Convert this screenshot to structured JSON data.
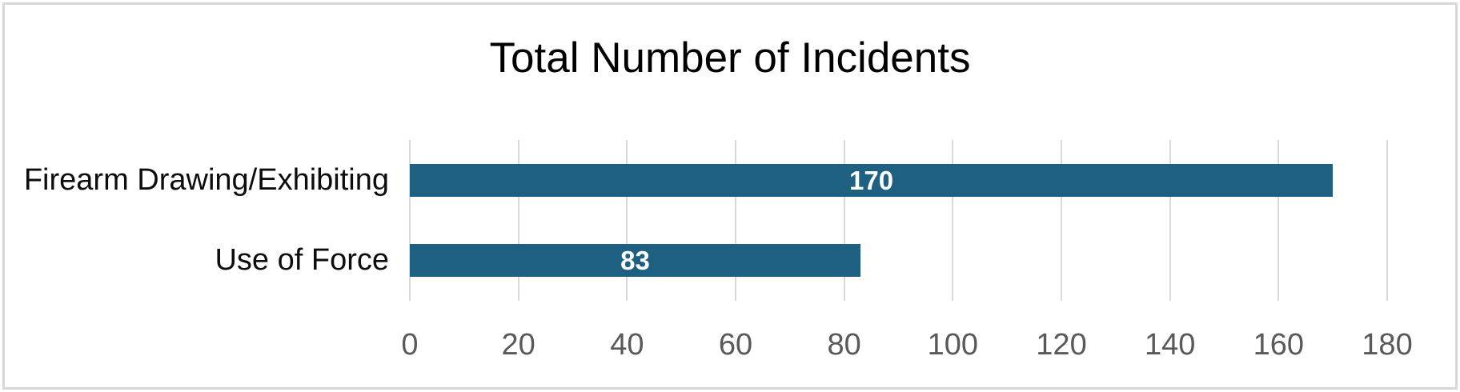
{
  "chart_data": {
    "type": "bar",
    "orientation": "horizontal",
    "title": "Total Number of Incidents",
    "categories": [
      "Firearm Drawing/Exhibiting",
      "Use of Force"
    ],
    "values": [
      170,
      83
    ],
    "value_labels": [
      "170",
      "83"
    ],
    "xlabel": "",
    "ylabel": "",
    "xlim": [
      0,
      180
    ],
    "x_ticks": [
      0,
      20,
      40,
      60,
      80,
      100,
      120,
      140,
      160,
      180
    ],
    "grid": true,
    "legend": false,
    "colors": {
      "bar": "#1E6082",
      "value_label": "#FFFFFF",
      "gridline": "#D9D9D9",
      "tick_label": "#595959",
      "category_label": "#0D0D0D",
      "title": "#000000",
      "frame_border": "#D8D8D8",
      "background": "#FFFFFF"
    }
  }
}
